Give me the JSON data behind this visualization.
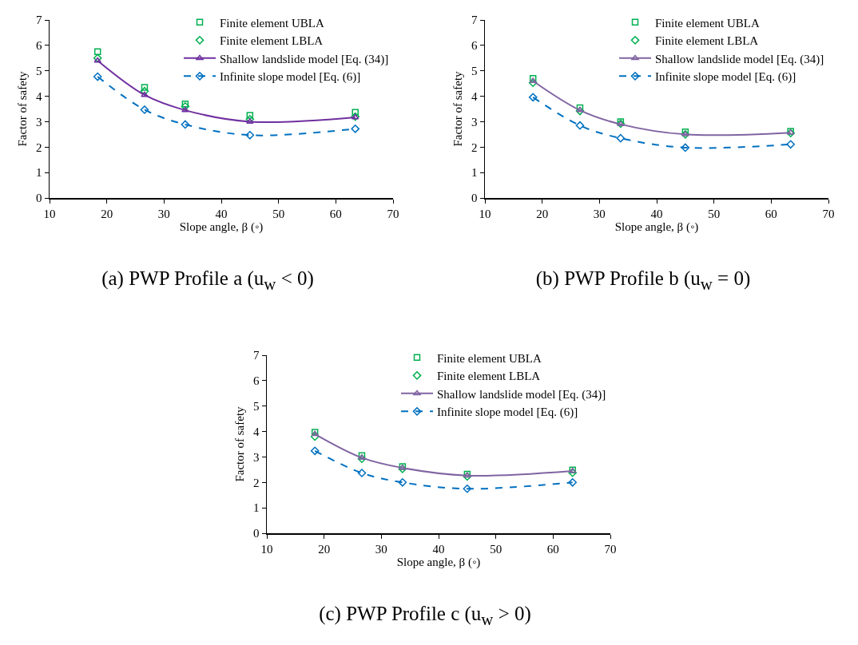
{
  "chart_data": [
    {
      "type": "line",
      "title": "(a) PWP Profile a (u$_{w}$ < 0)",
      "xlabel": "Slope angle, β (◦)",
      "ylabel": "Factor of safety",
      "x": [
        18.4,
        26.6,
        33.7,
        45,
        63.4
      ],
      "xlim": [
        10,
        70
      ],
      "xticks": [
        10,
        20,
        30,
        40,
        50,
        60,
        70
      ],
      "ylim": [
        0,
        7
      ],
      "yticks": [
        0,
        1,
        2,
        3,
        4,
        5,
        6,
        7
      ],
      "grid": false,
      "legend": "top right",
      "series": [
        {
          "name": "Finite element UBLA",
          "type": "scatter",
          "marker": "square",
          "color": "#00b050",
          "values": [
            5.75,
            4.35,
            3.7,
            3.25,
            3.37
          ]
        },
        {
          "name": "Finite element LBLA",
          "type": "scatter",
          "marker": "diamond",
          "color": "#00b050",
          "values": [
            5.5,
            4.2,
            3.6,
            3.1,
            3.2
          ]
        },
        {
          "name": "Shallow landslide model [Eq. (34)]",
          "marker": "triangle",
          "line_style": "solid",
          "color": "#7030a0",
          "values": [
            5.4,
            4.05,
            3.45,
            3.0,
            3.17
          ]
        },
        {
          "name": "Infinite slope model [Eq. (6)]",
          "marker": "diamond",
          "line_style": "dashed",
          "color": "#0070c0",
          "values": [
            4.77,
            3.47,
            2.89,
            2.47,
            2.72
          ]
        }
      ]
    },
    {
      "type": "line",
      "title": "(b) PWP Profile b (u$_{w}$ = 0)",
      "xlabel": "Slope angle, β (◦)",
      "ylabel": "Factor of safety",
      "x": [
        18.4,
        26.6,
        33.7,
        45,
        63.4
      ],
      "xlim": [
        10,
        70
      ],
      "xticks": [
        10,
        20,
        30,
        40,
        50,
        60,
        70
      ],
      "ylim": [
        0,
        7
      ],
      "yticks": [
        0,
        1,
        2,
        3,
        4,
        5,
        6,
        7
      ],
      "grid": false,
      "legend": "top right",
      "series": [
        {
          "name": "Finite element UBLA",
          "type": "scatter",
          "marker": "square",
          "color": "#00b050",
          "values": [
            4.7,
            3.55,
            3.0,
            2.6,
            2.62
          ]
        },
        {
          "name": "Finite element LBLA",
          "type": "scatter",
          "marker": "diamond",
          "color": "#00b050",
          "values": [
            4.53,
            3.42,
            2.92,
            2.5,
            2.55
          ]
        },
        {
          "name": "Shallow landslide model [Eq. (34)]",
          "marker": "triangle",
          "line_style": "solid",
          "color": "#8064a2",
          "values": [
            4.6,
            3.45,
            2.9,
            2.5,
            2.57
          ]
        },
        {
          "name": "Infinite slope model [Eq. (6)]",
          "marker": "diamond",
          "line_style": "dashed",
          "color": "#0070c0",
          "values": [
            3.96,
            2.85,
            2.35,
            1.98,
            2.11
          ]
        }
      ]
    },
    {
      "type": "line",
      "title": "(c) PWP Profile c (u$_{w}$ > 0)",
      "xlabel": "Slope angle, β (◦)",
      "ylabel": "Factor of safety",
      "x": [
        18.4,
        26.6,
        33.7,
        45,
        63.4
      ],
      "xlim": [
        10,
        70
      ],
      "xticks": [
        10,
        20,
        30,
        40,
        50,
        60,
        70
      ],
      "ylim": [
        0,
        7
      ],
      "yticks": [
        0,
        1,
        2,
        3,
        4,
        5,
        6,
        7
      ],
      "grid": false,
      "legend": "top right",
      "series": [
        {
          "name": "Finite element UBLA",
          "type": "scatter",
          "marker": "square",
          "color": "#00b050",
          "values": [
            3.97,
            3.05,
            2.62,
            2.32,
            2.49
          ]
        },
        {
          "name": "Finite element LBLA",
          "type": "scatter",
          "marker": "diamond",
          "color": "#00b050",
          "values": [
            3.8,
            2.93,
            2.53,
            2.23,
            2.38
          ]
        },
        {
          "name": "Shallow landslide model [Eq. (34)]",
          "marker": "triangle",
          "line_style": "solid",
          "color": "#8064a2",
          "values": [
            3.9,
            2.97,
            2.57,
            2.27,
            2.45
          ]
        },
        {
          "name": "Infinite slope model [Eq. (6)]",
          "marker": "diamond",
          "line_style": "dashed",
          "color": "#0070c0",
          "values": [
            3.24,
            2.37,
            2.0,
            1.75,
            2.0
          ]
        }
      ]
    }
  ]
}
